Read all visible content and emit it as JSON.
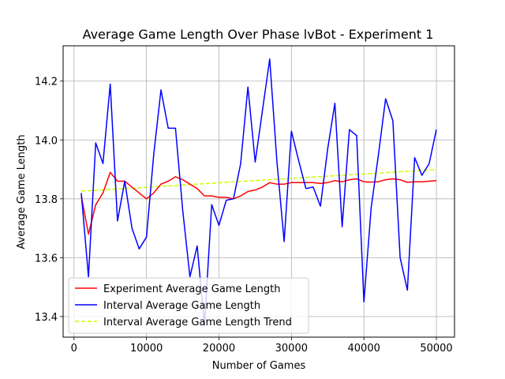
{
  "chart_data": {
    "type": "line",
    "title": "Average Game Length Over Phase lvBot - Experiment 1",
    "xlabel": "Number of Games",
    "ylabel": "Average Game Length",
    "xlim": [
      -1500,
      52500
    ],
    "ylim": [
      13.33,
      14.32
    ],
    "xticks": [
      0,
      10000,
      20000,
      30000,
      40000,
      50000
    ],
    "yticks": [
      13.4,
      13.6,
      13.8,
      14.0,
      14.2
    ],
    "ytick_labels": [
      "13.4",
      "13.6",
      "13.8",
      "14.0",
      "14.2"
    ],
    "grid": true,
    "legend_position": "lower-left",
    "x": [
      1000,
      2000,
      3000,
      4000,
      5000,
      6000,
      7000,
      8000,
      9000,
      10000,
      11000,
      12000,
      13000,
      14000,
      15000,
      16000,
      17000,
      18000,
      19000,
      20000,
      21000,
      22000,
      23000,
      24000,
      25000,
      26000,
      27000,
      28000,
      29000,
      30000,
      31000,
      32000,
      33000,
      34000,
      35000,
      36000,
      37000,
      38000,
      39000,
      40000,
      41000,
      42000,
      43000,
      44000,
      45000,
      46000,
      47000,
      48000,
      49000,
      50000
    ],
    "series": [
      {
        "name": "Experiment Average Game Length",
        "color": "#ff0000",
        "style": "solid",
        "values": [
          13.81,
          13.68,
          13.78,
          13.82,
          13.89,
          13.86,
          13.86,
          13.84,
          13.82,
          13.8,
          13.82,
          13.85,
          13.86,
          13.875,
          13.865,
          13.85,
          13.835,
          13.81,
          13.81,
          13.805,
          13.805,
          13.8,
          13.81,
          13.825,
          13.83,
          13.84,
          13.855,
          13.85,
          13.85,
          13.855,
          13.855,
          13.855,
          13.855,
          13.852,
          13.855,
          13.862,
          13.858,
          13.865,
          13.868,
          13.858,
          13.857,
          13.858,
          13.865,
          13.868,
          13.865,
          13.856,
          13.858,
          13.858,
          13.86,
          13.862
        ]
      },
      {
        "name": "Interval Average Game Length",
        "color": "#0000ff",
        "style": "solid",
        "values": [
          13.82,
          13.535,
          13.99,
          13.92,
          14.19,
          13.725,
          13.86,
          13.7,
          13.63,
          13.67,
          13.95,
          14.17,
          14.04,
          14.04,
          13.76,
          13.535,
          13.64,
          13.37,
          13.78,
          13.71,
          13.795,
          13.8,
          13.92,
          14.18,
          13.925,
          14.1,
          14.275,
          13.925,
          13.655,
          14.03,
          13.93,
          13.835,
          13.84,
          13.775,
          13.97,
          14.125,
          13.705,
          14.035,
          14.015,
          13.45,
          13.77,
          13.95,
          14.14,
          14.065,
          13.6,
          13.49,
          13.94,
          13.88,
          13.92,
          14.035
        ]
      },
      {
        "name": "Interval Average Game Length Trend",
        "color": "#ccff00",
        "style": "dashed",
        "values": [
          13.826,
          13.8275,
          13.829,
          13.8305,
          13.832,
          13.8335,
          13.835,
          13.8365,
          13.838,
          13.8395,
          13.841,
          13.8425,
          13.844,
          13.8455,
          13.847,
          13.8485,
          13.85,
          13.8515,
          13.853,
          13.8545,
          13.856,
          13.8575,
          13.859,
          13.8605,
          13.862,
          13.8635,
          13.865,
          13.8665,
          13.868,
          13.8695,
          13.871,
          13.8725,
          13.874,
          13.8755,
          13.877,
          13.8785,
          13.88,
          13.8815,
          13.883,
          13.8845,
          13.886,
          13.8875,
          13.889,
          13.8905,
          13.892,
          13.8935,
          13.895,
          13.8965,
          13.898,
          13.8995
        ]
      }
    ]
  }
}
